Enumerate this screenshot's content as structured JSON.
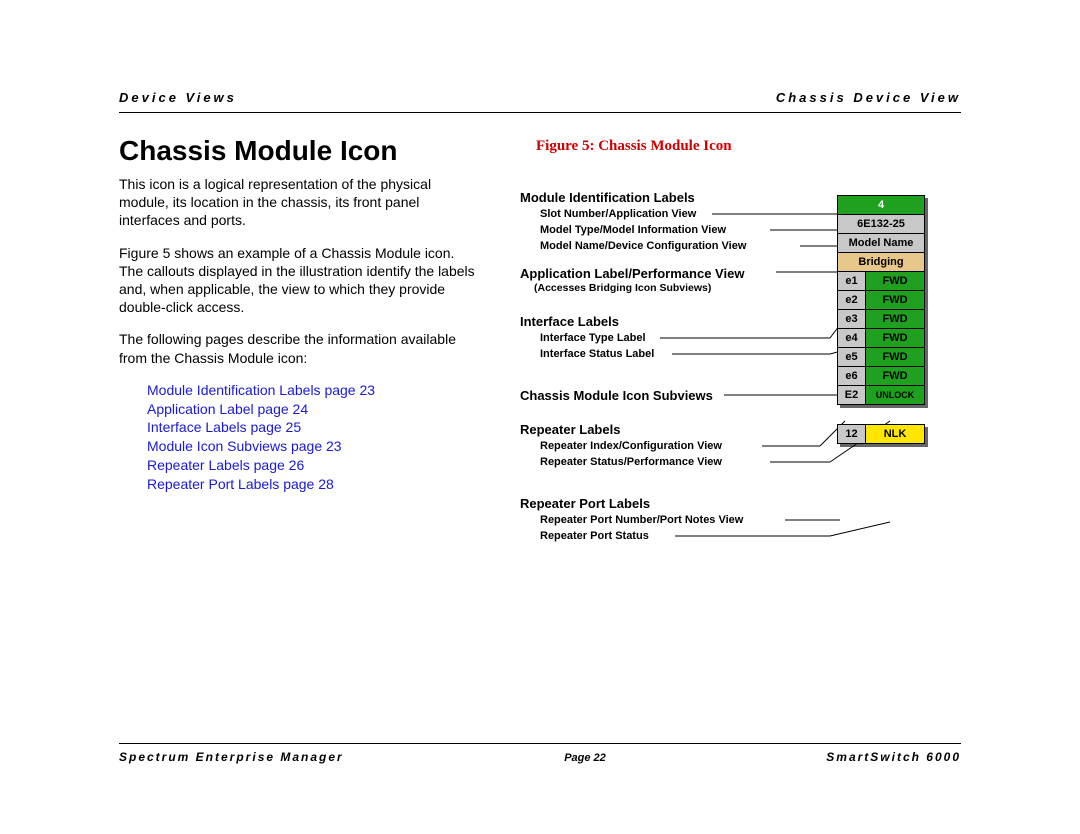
{
  "header": {
    "left": "Device Views",
    "right": "Chassis Device View"
  },
  "title": "Chassis Module Icon",
  "paragraphs": {
    "p1": "This icon is a logical representation of the physical module, its location in the chassis, its front panel interfaces and ports.",
    "p2": "Figure 5  shows an example of a Chassis Module icon. The callouts displayed in the illustration identify the labels and, when applicable, the view to which they provide double-click access.",
    "p3": "The following pages describe the information available from the Chassis Module icon:"
  },
  "links": {
    "l1": "Module Identification Labels page 23",
    "l2": "Application Label page 24",
    "l3": "Interface Labels page 25",
    "l4": "Module Icon Subviews page 23",
    "l5": "Repeater Labels page 26",
    "l6": "Repeater Port Labels page 28"
  },
  "figure_caption": "Figure 5:   Chassis Module Icon",
  "callouts": {
    "module_id": "Module Identification Labels",
    "slot": "Slot Number/Application View",
    "model_type": "Model Type/Model Information View",
    "model_name": "Model Name/Device Configuration View",
    "app_label": "Application Label/Performance View",
    "accesses": "(Accesses Bridging Icon Subviews)",
    "interface_labels": "Interface Labels",
    "iface_type": "Interface Type Label",
    "iface_status": "Interface Status Label",
    "subviews": "Chassis Module Icon Subviews",
    "repeater_labels": "Repeater Labels",
    "rep_index": "Repeater Index/Configuration View",
    "rep_status": "Repeater Status/Performance View",
    "rep_port_labels": "Repeater Port Labels",
    "rep_port_num": "Repeater Port Number/Port Notes View",
    "rep_port_status": "Repeater Port Status"
  },
  "chassis": {
    "slot": "4",
    "model_type": "6E132-25",
    "model_name": "Model Name",
    "app": "Bridging",
    "ifaces": [
      {
        "name": "e1",
        "status": "FWD"
      },
      {
        "name": "e2",
        "status": "FWD"
      },
      {
        "name": "e3",
        "status": "FWD"
      },
      {
        "name": "e4",
        "status": "FWD"
      },
      {
        "name": "e5",
        "status": "FWD"
      },
      {
        "name": "e6",
        "status": "FWD"
      }
    ],
    "repeater": {
      "idx": "E2",
      "status": "UNLOCK"
    },
    "port": {
      "num": "12",
      "status": "NLK"
    }
  },
  "colors": {
    "green": "#1fa01f",
    "green_text": "#1fa01f",
    "gray": "#c8c8c8",
    "tan": "#e8c88a",
    "yellow": "#ffe600",
    "link": "#1a1acc",
    "caption": "#cc0000"
  },
  "footer": {
    "left": "Spectrum Enterprise Manager",
    "page": "Page 22",
    "right": "SmartSwitch 6000"
  }
}
